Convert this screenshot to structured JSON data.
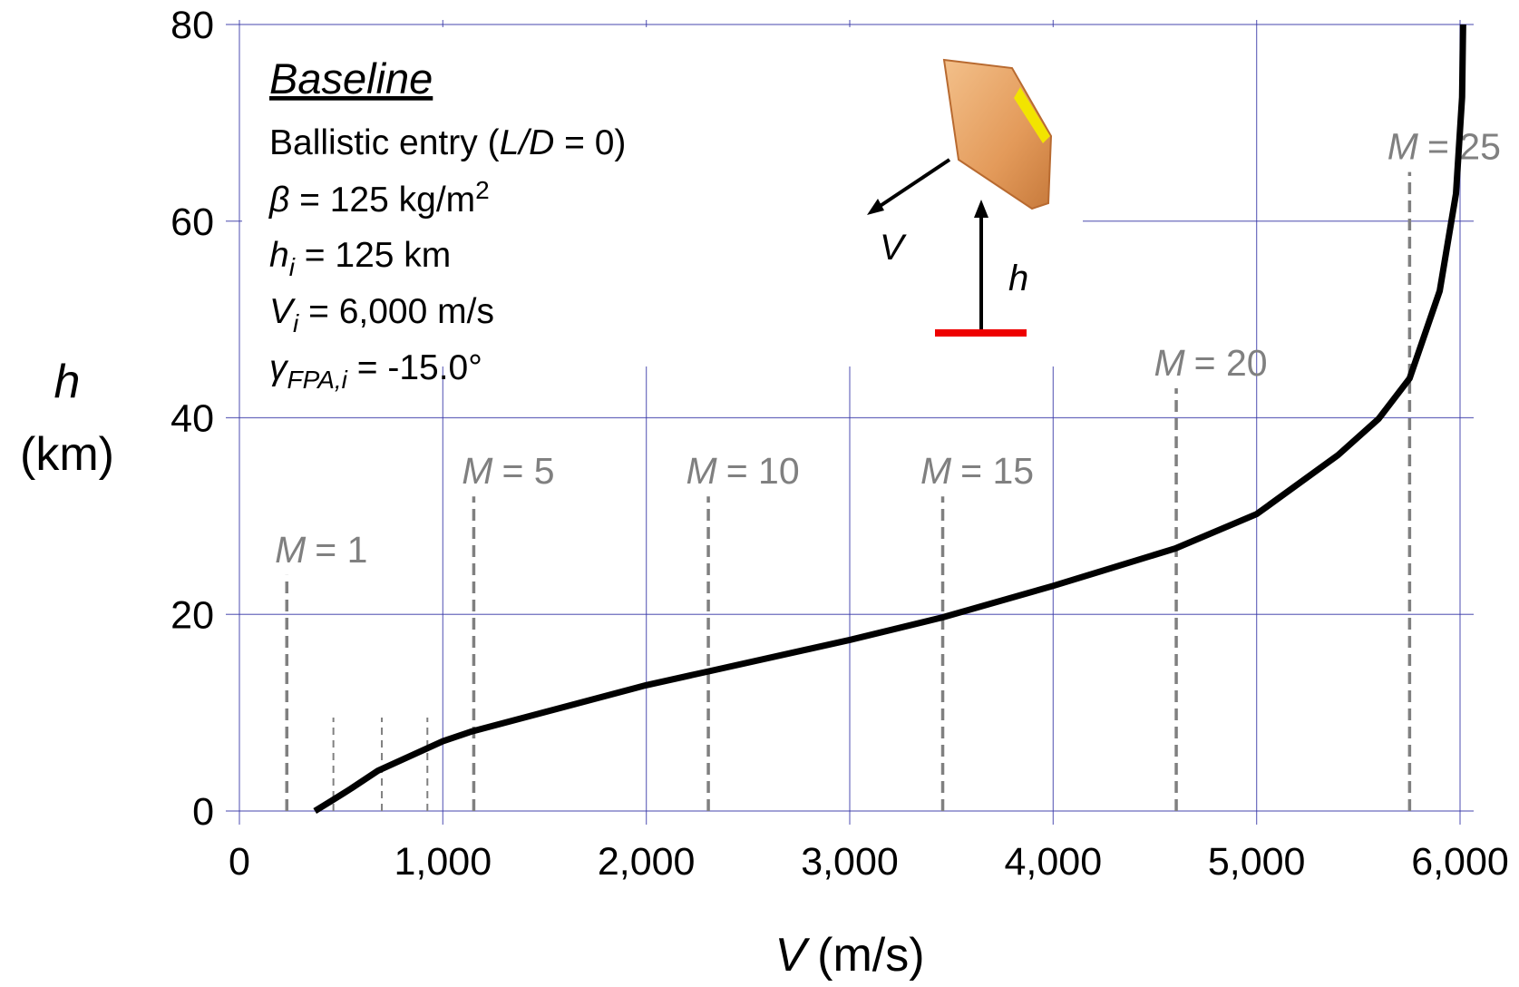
{
  "chart_data": {
    "type": "line",
    "xlabel": {
      "symbol": "V",
      "unit": "(m/s)"
    },
    "ylabel": {
      "symbol": "h",
      "unit": "(km)"
    },
    "xlim": [
      0,
      6000
    ],
    "ylim": [
      0,
      80
    ],
    "xticks": [
      0,
      {
        "value": 1000,
        "label": "1,000"
      },
      {
        "value": 2000,
        "label": "2,000"
      },
      {
        "value": 3000,
        "label": "3,000"
      },
      {
        "value": 4000,
        "label": "4,000"
      },
      {
        "value": 5000,
        "label": "5,000"
      },
      {
        "value": 6000,
        "label": "6,000"
      }
    ],
    "yticks": [
      0,
      20,
      40,
      60,
      80
    ],
    "grid": true,
    "grid_color": "#3a3aa8",
    "series": [
      {
        "color": "#000000",
        "x": [
          371,
          450,
          550,
          681,
          1000,
          1143,
          2000,
          2305,
          3000,
          3457,
          4000,
          4600,
          5000,
          5400,
          5600,
          5752,
          5900,
          5980,
          6010,
          6015
        ],
        "values": [
          0,
          1.0,
          2.3,
          4.1,
          7.1,
          8.1,
          12.8,
          14.2,
          17.4,
          19.7,
          22.9,
          26.7,
          30.2,
          36.2,
          39.9,
          44,
          52.9,
          62.8,
          72.6,
          80
        ]
      }
    ],
    "mach_lines": [
      {
        "var": "M",
        "eq": "= 1",
        "v": 233,
        "h": 24
      },
      {
        "var": "M",
        "eq": "= 5",
        "v": 1152,
        "h": 32
      },
      {
        "var": "M",
        "eq": "= 10",
        "v": 2305,
        "h": 32
      },
      {
        "var": "M",
        "eq": "= 15",
        "v": 3457,
        "h": 32
      },
      {
        "var": "M",
        "eq": "= 20",
        "v": 4605,
        "h": 43
      },
      {
        "var": "M",
        "eq": "= 25",
        "v": 5752,
        "h": 65
      }
    ],
    "minor_lines": [
      {
        "v": 462,
        "h": 9.5
      },
      {
        "v": 700,
        "h": 9.5
      },
      {
        "v": 924,
        "h": 9.5
      }
    ],
    "mach_color": "#808080",
    "annotation": {
      "title": "Baseline",
      "lines": [
        [
          {
            "text": "Ballistic entry ("
          },
          {
            "text": "L/D",
            "style": "italic"
          },
          {
            "text": " = 0)"
          }
        ],
        [
          {
            "text": "β",
            "style": "italic"
          },
          {
            "text": " = 125 kg/m"
          },
          {
            "text": "2",
            "style": "sup"
          }
        ],
        [
          {
            "text": "h",
            "style": "italic"
          },
          {
            "text": "i",
            "style": "sub"
          },
          {
            "text": " = 125 km"
          }
        ],
        [
          {
            "text": "V",
            "style": "italic"
          },
          {
            "text": "i",
            "style": "sub"
          },
          {
            "text": " = 6,000 m/s"
          }
        ],
        [
          {
            "text": "γ",
            "style": "italic"
          },
          {
            "text": "FPA,i",
            "style": "sub"
          },
          {
            "text": " = -15.0°"
          }
        ]
      ]
    },
    "diagram": {
      "velocity_label": "V",
      "height_label": "h"
    }
  }
}
